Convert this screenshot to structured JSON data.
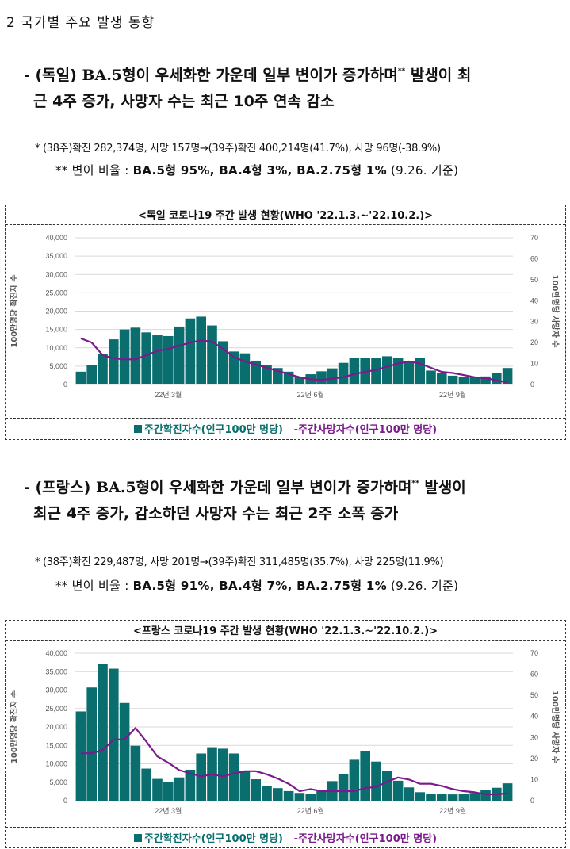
{
  "section": {
    "title": "2  국가별 주요 발생 동향"
  },
  "germany": {
    "bullet_prefix": "- (독일) ",
    "bullet_num": "BA.5",
    "bullet_text1": "형이 우세화한 가운데 일부 변이가 증가하며",
    "bullet_sup": "**",
    "bullet_text2": " 발생이 최",
    "bullet_line2": "근 4주 증가, 사망자 수는 최근 10주 연속 감소",
    "note1": "* (38주)확진 282,374명, 사망 157명→(39주)확진 400,214명(41.7%), 사망 96명(-38.9%)",
    "note2_prefix": "** 변이 비율 : ",
    "note2_bold": "BA.5형 95%, BA.4형 3%, BA.2.75형 1%",
    "note2_suffix": " (9.26. 기준)"
  },
  "france": {
    "bullet_prefix": "- (프랑스) ",
    "bullet_num": "BA.5",
    "bullet_text1": "형이 우세화한 가운데 일부 변이가 증가하며",
    "bullet_sup": "**",
    "bullet_text2": " 발생이",
    "bullet_line2": "최근 4주 증가, 감소하던 사망자 수는 최근 2주 소폭 증가",
    "note1": "* (38주)확진 229,487명, 사망 201명→(39주)확진 311,485명(35.7%), 사망 225명(11.9%)",
    "note2_prefix": "** 변이 비율 : ",
    "note2_bold": "BA.5형 91%, BA.4형 7%, BA.2.75형 1%",
    "note2_suffix": " (9.26. 기준)"
  },
  "legend": {
    "bar_label": "주간확진자수(인구100만 명당)",
    "line_label": "주간사망자수(인구100만 명당)",
    "line_dash": "-"
  },
  "colors": {
    "bar": "#0b6e6e",
    "line": "#7a1a8c",
    "grid": "#d9d9d9"
  },
  "chart_data": [
    {
      "type": "bar",
      "title": "<독일 코로나19 주간 발생 현황(WHO '22.1.3.~'22.10.2.)>",
      "ylabel": "100만명당 확진자 수",
      "y2label": "100만명당 사망자 수",
      "ylim": [
        0,
        40000
      ],
      "y2lim": [
        0,
        70
      ],
      "yticks": [
        "40,000",
        "35,000",
        "30,000",
        "25,000",
        "20,000",
        "15,000",
        "10,000",
        "5,000",
        "0"
      ],
      "y2ticks": [
        "70",
        "60",
        "50",
        "40",
        "30",
        "20",
        "10",
        "0"
      ],
      "xticks": [
        {
          "label": "22년 3월",
          "index": 8.5
        },
        {
          "label": "22년 6월",
          "index": 21.5
        },
        {
          "label": "22년 9월",
          "index": 34.5
        }
      ],
      "series": [
        {
          "name": "주간확진자수(인구100만 명당)",
          "axis": "left",
          "kind": "bar",
          "values": [
            3500,
            5200,
            8400,
            12300,
            15000,
            15500,
            14200,
            13400,
            13200,
            15800,
            18000,
            18500,
            16100,
            11800,
            9000,
            8500,
            6500,
            5400,
            4500,
            3500,
            2100,
            2800,
            3600,
            4400,
            5900,
            7200,
            7200,
            7200,
            7700,
            7200,
            6300,
            7300,
            3800,
            3100,
            2400,
            2100,
            2100,
            2200,
            3200,
            4500
          ]
        },
        {
          "name": "주간사망자수(인구100만 명당)",
          "axis": "right",
          "kind": "line",
          "values": [
            22,
            20,
            14,
            12.5,
            12,
            12,
            14,
            16,
            17,
            18.5,
            20,
            21,
            20.5,
            17,
            13,
            11,
            9.5,
            8,
            6.5,
            5,
            3.5,
            2.5,
            2.2,
            2.8,
            3.5,
            5,
            6,
            7,
            8.5,
            10,
            11,
            10,
            8,
            6,
            5.5,
            4.5,
            3.5,
            3,
            2,
            1
          ]
        }
      ]
    },
    {
      "type": "bar",
      "title": "<프랑스 코로나19 주간 발생 현황(WHO '22.1.3.~'22.10.2.)>",
      "ylabel": "100만명당 확진자 수",
      "y2label": "100만명당 사망자 수",
      "ylim": [
        0,
        40000
      ],
      "y2lim": [
        0,
        70
      ],
      "yticks": [
        "40,000",
        "35,000",
        "30,000",
        "25,000",
        "20,000",
        "15,000",
        "10,000",
        "5,000",
        "0"
      ],
      "y2ticks": [
        "70",
        "60",
        "50",
        "40",
        "30",
        "20",
        "10",
        "0"
      ],
      "xticks": [
        {
          "label": "22년 3월",
          "index": 8.5
        },
        {
          "label": "22년 6월",
          "index": 21.5
        },
        {
          "label": "22년 9월",
          "index": 34.5
        }
      ],
      "series": [
        {
          "name": "주간확진자수(인구100만 명당)",
          "axis": "left",
          "kind": "bar",
          "values": [
            24200,
            30700,
            37000,
            35800,
            26500,
            14900,
            8700,
            5900,
            5100,
            6300,
            8400,
            12800,
            14500,
            14100,
            12800,
            8000,
            5800,
            4000,
            3400,
            2600,
            2100,
            1900,
            2600,
            5300,
            7300,
            11100,
            13500,
            10600,
            8100,
            5400,
            3600,
            2300,
            1900,
            1900,
            1700,
            1800,
            2100,
            2800,
            3500,
            4700
          ]
        },
        {
          "name": "주간사망자수(인구100만 명당)",
          "axis": "right",
          "kind": "line",
          "values": [
            22.5,
            22.5,
            24,
            29,
            29,
            34.5,
            28,
            21,
            18,
            14.5,
            13,
            11.5,
            12.5,
            11.5,
            13,
            14,
            14,
            12.5,
            10.5,
            8,
            4.5,
            5.5,
            4.5,
            4.5,
            4.5,
            4.5,
            6,
            6.5,
            9,
            11,
            10,
            8,
            8,
            7,
            5.5,
            4.5,
            4,
            3,
            3,
            3.5
          ]
        }
      ]
    }
  ]
}
